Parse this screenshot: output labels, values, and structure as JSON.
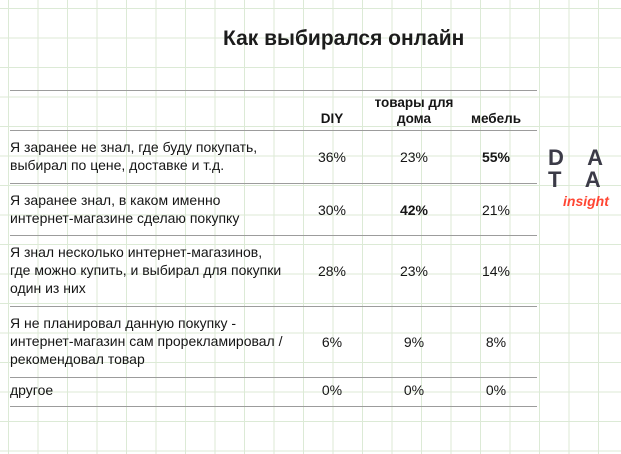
{
  "title": "Как выбирался онлайн",
  "logo": {
    "line1": "D A",
    "line2": "T A",
    "caption": "insight"
  },
  "colors": {
    "title_text": "#1c1c1c",
    "body_text": "#151515",
    "rule_line": "#9c9c9c",
    "grid_line": "#dcead6",
    "logo_text": "#3b3b47",
    "logo_accent": "#ff4633"
  },
  "chart_data": {
    "type": "table",
    "title": "Как выбирался онлайн",
    "unit": "%",
    "columns": [
      "DIY",
      "товары для дома",
      "мебель"
    ],
    "rows": [
      {
        "label": "Я заранее не знал, где буду покупать, выбирал по цене, доставке и т.д.",
        "values": [
          36,
          23,
          55
        ],
        "display": [
          "36%",
          "23%",
          "55%"
        ]
      },
      {
        "label": "Я заранее знал, в каком именно интернет-магазине сделаю покупку",
        "values": [
          30,
          42,
          21
        ],
        "display": [
          "30%",
          "42%",
          "21%"
        ]
      },
      {
        "label": "Я знал несколько интернет-магазинов, где можно купить, и выбирал для покупки один из них",
        "values": [
          28,
          23,
          14
        ],
        "display": [
          "28%",
          "23%",
          "14%"
        ]
      },
      {
        "label": "Я не планировал данную покупку - интернет-магазин сам прорекламировал / рекомендовал товар",
        "values": [
          6,
          9,
          8
        ],
        "display": [
          "6%",
          "9%",
          "8%"
        ]
      },
      {
        "label": "другое",
        "values": [
          0,
          0,
          0
        ],
        "display": [
          "0%",
          "0%",
          "0%"
        ]
      }
    ],
    "emphasized": [
      {
        "row": 0,
        "column": "мебель",
        "value": 55
      },
      {
        "row": 1,
        "column": "товары для дома",
        "value": 42
      }
    ]
  }
}
